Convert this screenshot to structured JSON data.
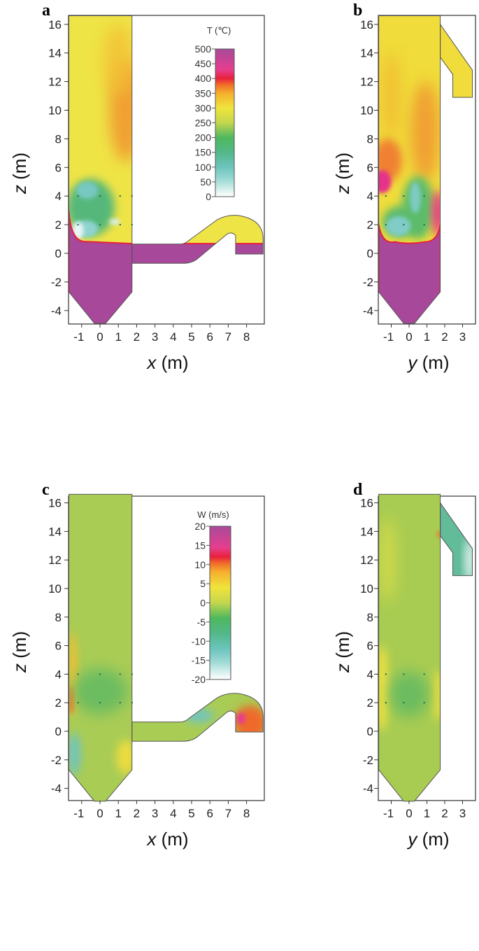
{
  "chart_data": [
    {
      "type": "heatmap",
      "panel_label": "a",
      "quantity": "temperature",
      "xlabel_var": "x",
      "xlabel_unit": " (m)",
      "ylabel_var": "z",
      "ylabel_unit": " (m)",
      "x_ticks": [
        "-1",
        "0",
        "1",
        "2",
        "3",
        "4",
        "5",
        "6",
        "7",
        "8"
      ],
      "x_tick_values": [
        -1,
        0,
        1,
        2,
        3,
        4,
        5,
        6,
        7,
        8
      ],
      "z_ticks": [
        "16",
        "14",
        "12",
        "10",
        "8",
        "6",
        "4",
        "2",
        "0",
        "-2",
        "-4"
      ],
      "z_tick_values": [
        16,
        14,
        12,
        10,
        8,
        6,
        4,
        2,
        0,
        -2,
        -4
      ],
      "xlim": [
        -1.7,
        8.9
      ],
      "zlim": [
        -4.9,
        16.6
      ],
      "colorbar": {
        "title": "T (℃)",
        "range": [
          0,
          500
        ],
        "tick_labels": [
          "500",
          "450",
          "400",
          "350",
          "300",
          "250",
          "200",
          "150",
          "100",
          "50",
          "0"
        ],
        "tick_values": [
          500,
          450,
          400,
          350,
          300,
          250,
          200,
          150,
          100,
          50,
          0
        ]
      }
    },
    {
      "type": "heatmap",
      "panel_label": "b",
      "quantity": "temperature",
      "xlabel_var": "y",
      "xlabel_unit": " (m)",
      "ylabel_var": "z",
      "ylabel_unit": " (m)",
      "x_ticks": [
        "-1",
        "0",
        "1",
        "2",
        "3"
      ],
      "x_tick_values": [
        -1,
        0,
        1,
        2,
        3
      ],
      "z_ticks": [
        "16",
        "14",
        "12",
        "10",
        "8",
        "6",
        "4",
        "2",
        "0",
        "-2",
        "-4"
      ],
      "z_tick_values": [
        16,
        14,
        12,
        10,
        8,
        6,
        4,
        2,
        0,
        -2,
        -4
      ],
      "xlim": [
        -1.7,
        3.7
      ],
      "zlim": [
        -4.9,
        16.6
      ]
    },
    {
      "type": "heatmap",
      "panel_label": "c",
      "quantity": "vertical velocity",
      "xlabel_var": "x",
      "xlabel_unit": " (m)",
      "ylabel_var": "z",
      "ylabel_unit": " (m)",
      "x_ticks": [
        "-1",
        "0",
        "1",
        "2",
        "3",
        "4",
        "5",
        "6",
        "7",
        "8"
      ],
      "x_tick_values": [
        -1,
        0,
        1,
        2,
        3,
        4,
        5,
        6,
        7,
        8
      ],
      "z_ticks": [
        "16",
        "14",
        "12",
        "10",
        "8",
        "6",
        "4",
        "2",
        "0",
        "-2",
        "-4"
      ],
      "z_tick_values": [
        16,
        14,
        12,
        10,
        8,
        6,
        4,
        2,
        0,
        -2,
        -4
      ],
      "xlim": [
        -1.7,
        8.9
      ],
      "zlim": [
        -4.9,
        16.6
      ],
      "colorbar": {
        "title": "W (m/s)",
        "range": [
          -20,
          20
        ],
        "tick_labels": [
          "20",
          "15",
          "10",
          "5",
          "0",
          "-5",
          "-10",
          "-15",
          "-20"
        ],
        "tick_values": [
          20,
          15,
          10,
          5,
          0,
          -5,
          -10,
          -15,
          -20
        ]
      }
    },
    {
      "type": "heatmap",
      "panel_label": "d",
      "quantity": "vertical velocity",
      "xlabel_var": "y",
      "xlabel_unit": " (m)",
      "ylabel_var": "z",
      "ylabel_unit": " (m)",
      "x_ticks": [
        "-1",
        "0",
        "1",
        "2",
        "3"
      ],
      "x_tick_values": [
        -1,
        0,
        1,
        2,
        3
      ],
      "z_ticks": [
        "16",
        "14",
        "12",
        "10",
        "8",
        "6",
        "4",
        "2",
        "0",
        "-2",
        "-4"
      ],
      "z_tick_values": [
        16,
        14,
        12,
        10,
        8,
        6,
        4,
        2,
        0,
        -2,
        -4
      ],
      "xlim": [
        -1.7,
        3.7
      ],
      "zlim": [
        -4.9,
        16.6
      ]
    }
  ],
  "colormap": [
    "#ffffff",
    "#9ad8d2",
    "#6cc4bd",
    "#52b88a",
    "#4fb85e",
    "#c3d64e",
    "#f0e43c",
    "#f5b02e",
    "#f06a2a",
    "#e8203c",
    "#e63e8e",
    "#a84a9a"
  ]
}
